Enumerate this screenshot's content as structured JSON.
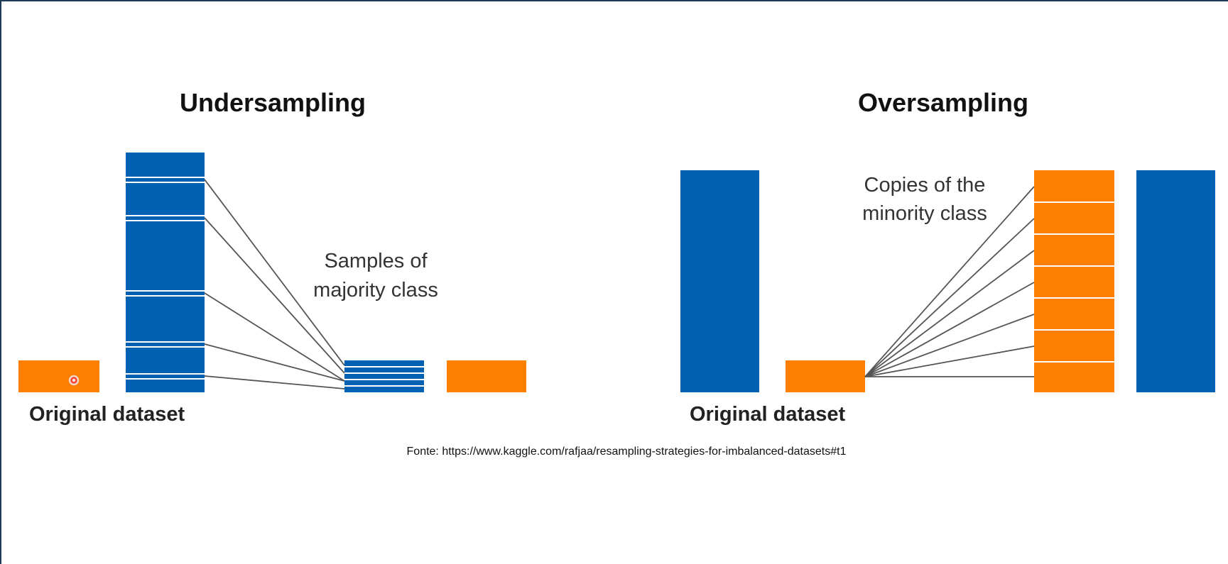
{
  "colors": {
    "majority": "#0061b3",
    "minority": "#ff7f00",
    "divider": "#ffffff",
    "connector": "#555555"
  },
  "undersampling": {
    "title": "Undersampling",
    "annotation_line1": "Samples of",
    "annotation_line2": "majority class",
    "dataset_label": "Original dataset"
  },
  "oversampling": {
    "title": "Oversampling",
    "annotation_line1": "Copies of the",
    "annotation_line2": "minority class",
    "dataset_label": "Original dataset",
    "copies_count": 7
  },
  "source": "Fonte: https://www.kaggle.com/rafjaa/resampling-strategies-for-imbalanced-datasets#t1",
  "cursor": {
    "icon": "cursor-dot-icon"
  }
}
